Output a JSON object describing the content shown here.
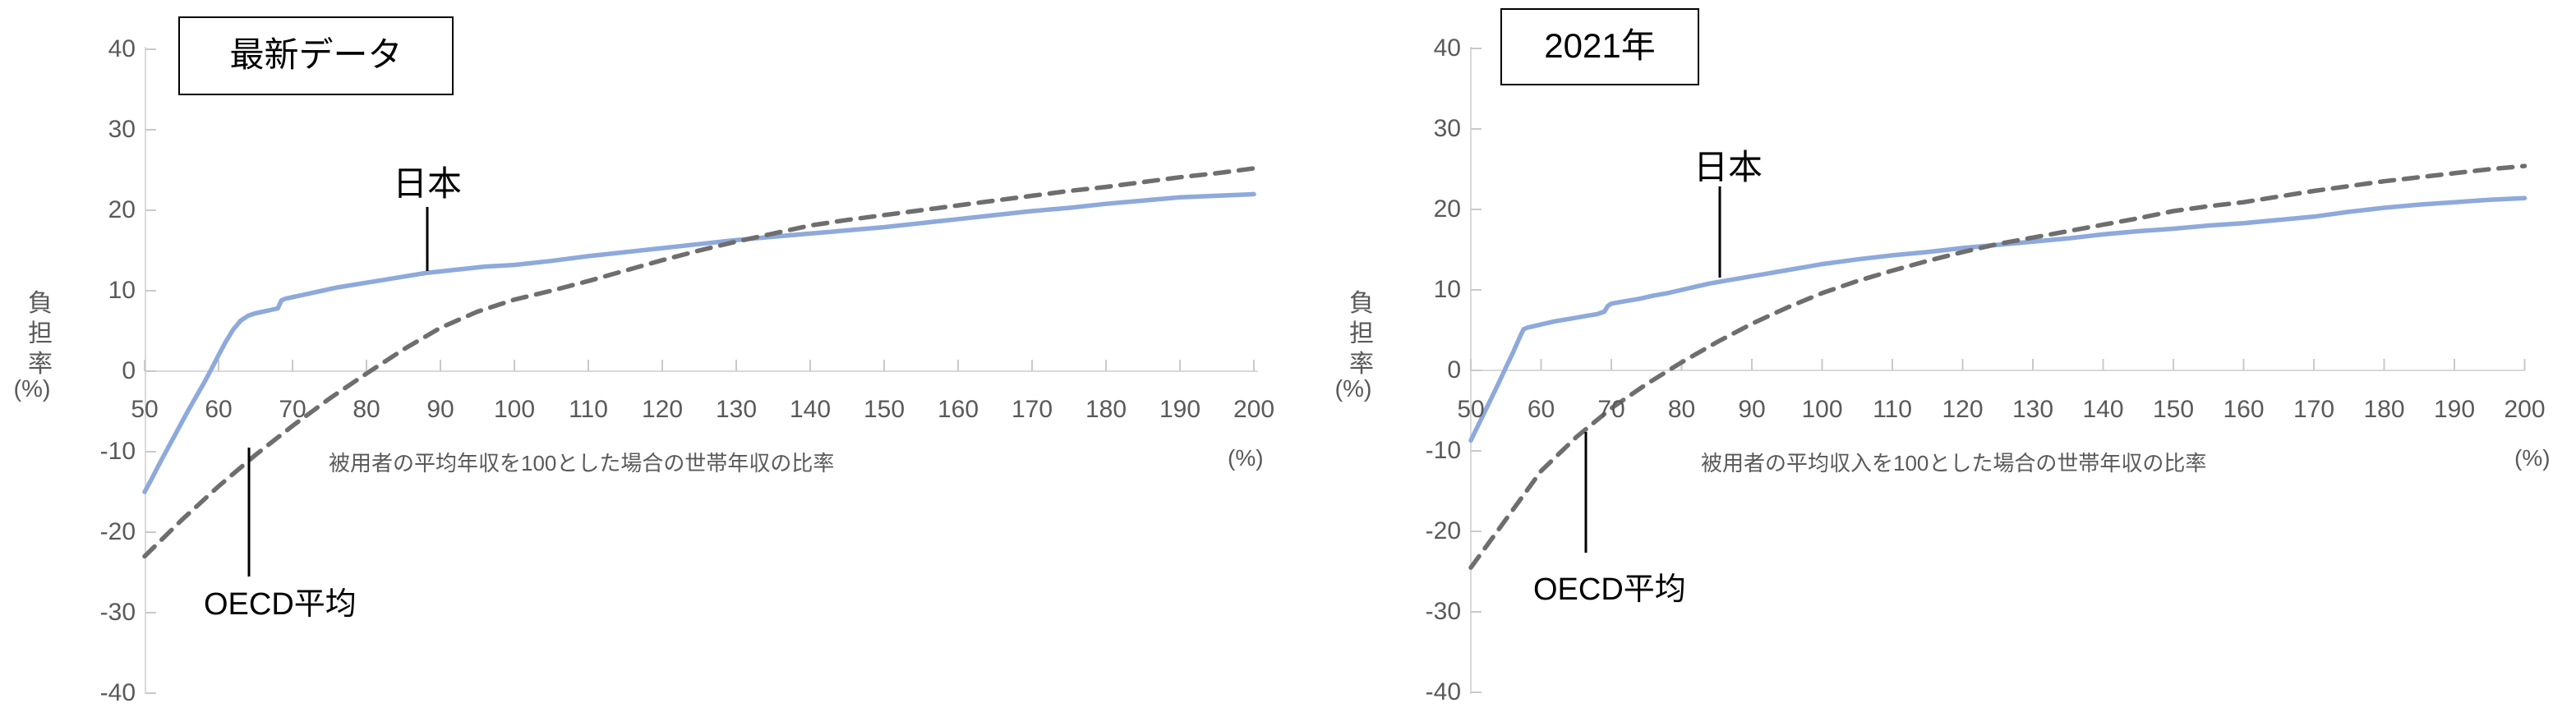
{
  "colors": {
    "japan_line": "#8EA9DB",
    "oecd_line": "#6E6E6E",
    "axis_line": "#D9D9D9",
    "tick_mark": "#C9C9C9",
    "tick_label": "#595959",
    "annotation": "#000000"
  },
  "charts": [
    {
      "title": "最新データ",
      "annotations": {
        "japan": "日本",
        "oecd": "OECD平均"
      },
      "y_axis": {
        "title": "負担率",
        "unit": "(%)"
      },
      "x_axis": {
        "title": "被用者の平均年収を100とした場合の世帯年収の比率",
        "unit": "(%)"
      },
      "chart_data": {
        "type": "line",
        "title": "最新データ",
        "xlabel": "被用者の平均年収を100とした場合の世帯年収の比率 (%)",
        "ylabel": "負担率 (%)",
        "xlim": [
          50,
          200
        ],
        "ylim": [
          -40,
          40
        ],
        "x_ticks": [
          50,
          60,
          70,
          80,
          90,
          100,
          110,
          120,
          130,
          140,
          150,
          160,
          170,
          180,
          190,
          200
        ],
        "y_ticks": [
          40,
          30,
          20,
          10,
          0,
          -10,
          -20,
          -30,
          -40
        ],
        "grid": false,
        "legend": "inline-annotations",
        "series": [
          {
            "name": "日本",
            "style": "solid",
            "color": "#8EA9DB",
            "x": [
              50,
              51,
              52,
              53,
              54,
              55,
              56,
              57,
              58,
              59,
              60,
              61,
              62,
              63,
              64,
              65,
              66,
              67,
              68,
              68.5,
              69,
              70,
              72,
              74,
              76,
              78,
              80,
              82,
              84,
              86,
              88,
              90,
              92,
              94,
              96,
              98,
              100,
              105,
              110,
              115,
              120,
              125,
              130,
              135,
              140,
              145,
              150,
              155,
              160,
              165,
              170,
              175,
              180,
              185,
              190,
              195,
              200
            ],
            "y": [
              -15,
              -13.3,
              -11.5,
              -9.8,
              -8.1,
              -6.4,
              -4.7,
              -3.1,
              -1.5,
              0.2,
              2,
              3.7,
              5.2,
              6.3,
              6.9,
              7.2,
              7.4,
              7.6,
              7.8,
              8.8,
              9,
              9.2,
              9.6,
              10,
              10.4,
              10.7,
              11,
              11.3,
              11.6,
              11.9,
              12.2,
              12.4,
              12.6,
              12.8,
              13,
              13.1,
              13.2,
              13.7,
              14.3,
              14.8,
              15.3,
              15.8,
              16.3,
              16.7,
              17.1,
              17.5,
              17.9,
              18.4,
              18.9,
              19.4,
              19.9,
              20.3,
              20.8,
              21.2,
              21.6,
              21.8,
              22
            ]
          },
          {
            "name": "OECD平均",
            "style": "dashed",
            "color": "#6E6E6E",
            "x": [
              50,
              55,
              60,
              65,
              70,
              75,
              80,
              85,
              90,
              95,
              100,
              105,
              110,
              115,
              120,
              125,
              130,
              135,
              140,
              145,
              150,
              155,
              160,
              165,
              170,
              175,
              180,
              185,
              190,
              195,
              200
            ],
            "y": [
              -23,
              -18.5,
              -14.3,
              -10.4,
              -6.8,
              -3.4,
              -0.3,
              2.7,
              5.4,
              7.4,
              8.9,
              10,
              11.2,
              12.5,
              13.8,
              15,
              16.1,
              17.1,
              18.1,
              18.8,
              19.4,
              20,
              20.6,
              21.2,
              21.8,
              22.4,
              22.9,
              23.5,
              24.1,
              24.6,
              25.2
            ]
          }
        ]
      }
    },
    {
      "title": "2021年",
      "annotations": {
        "japan": "日本",
        "oecd": "OECD平均"
      },
      "y_axis": {
        "title": "負担率",
        "unit": "(%)"
      },
      "x_axis": {
        "title": "被用者の平均収入を100とした場合の世帯年収の比率",
        "unit": "(%)"
      },
      "chart_data": {
        "type": "line",
        "title": "2021年",
        "xlabel": "被用者の平均収入を100とした場合の世帯年収の比率 (%)",
        "ylabel": "負担率 (%)",
        "xlim": [
          50,
          200
        ],
        "ylim": [
          -40,
          40
        ],
        "x_ticks": [
          50,
          60,
          70,
          80,
          90,
          100,
          110,
          120,
          130,
          140,
          150,
          160,
          170,
          180,
          190,
          200
        ],
        "y_ticks": [
          40,
          30,
          20,
          10,
          0,
          -10,
          -20,
          -30,
          -40
        ],
        "grid": false,
        "legend": "inline-annotations",
        "series": [
          {
            "name": "日本",
            "style": "solid",
            "color": "#8EA9DB",
            "x": [
              50,
              51,
              52,
              53,
              54,
              55,
              56,
              57,
              57.5,
              58,
              59,
              60,
              62,
              64,
              66,
              68,
              69,
              69.5,
              70,
              72,
              74,
              76,
              78,
              80,
              82,
              84,
              86,
              88,
              90,
              92,
              94,
              96,
              98,
              100,
              105,
              110,
              115,
              120,
              125,
              130,
              135,
              140,
              145,
              150,
              155,
              160,
              165,
              170,
              175,
              180,
              185,
              190,
              195,
              200
            ],
            "y": [
              -8.7,
              -6.9,
              -5.1,
              -3.3,
              -1.5,
              0.4,
              2.2,
              4.2,
              5.1,
              5.3,
              5.5,
              5.7,
              6.1,
              6.4,
              6.7,
              7,
              7.3,
              8,
              8.3,
              8.6,
              8.9,
              9.3,
              9.6,
              10,
              10.4,
              10.8,
              11.1,
              11.4,
              11.7,
              12,
              12.3,
              12.6,
              12.9,
              13.2,
              13.8,
              14.3,
              14.7,
              15.2,
              15.6,
              16,
              16.4,
              16.9,
              17.3,
              17.6,
              18,
              18.3,
              18.7,
              19.1,
              19.7,
              20.2,
              20.6,
              20.9,
              21.2,
              21.4
            ]
          },
          {
            "name": "OECD平均",
            "style": "dashed",
            "color": "#6E6E6E",
            "x": [
              50,
              55,
              60,
              65,
              70,
              75,
              80,
              85,
              90,
              95,
              100,
              105,
              110,
              115,
              120,
              125,
              130,
              135,
              140,
              145,
              150,
              155,
              160,
              165,
              170,
              175,
              180,
              185,
              190,
              195,
              200
            ],
            "y": [
              -24.5,
              -18.5,
              -12.5,
              -8.3,
              -4.7,
              -1.7,
              1,
              3.5,
              5.8,
              7.8,
              9.6,
              11.1,
              12.4,
              13.6,
              14.7,
              15.7,
              16.5,
              17.3,
              18.1,
              18.9,
              19.8,
              20.4,
              20.9,
              21.6,
              22.3,
              22.9,
              23.5,
              24,
              24.5,
              25,
              25.4
            ]
          }
        ]
      }
    }
  ]
}
